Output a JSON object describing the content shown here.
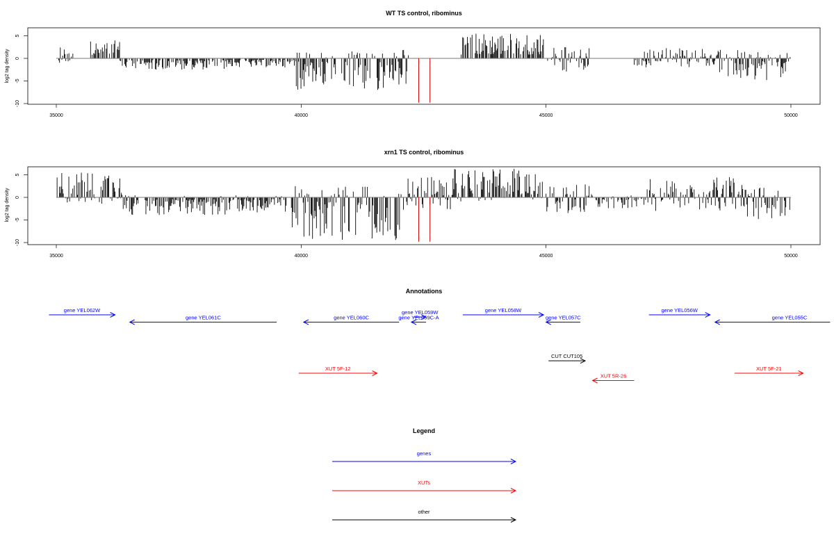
{
  "chart_data": [
    {
      "type": "bar",
      "title": "WT TS control, ribominus",
      "xlabel": "",
      "ylabel": "log2 tag density",
      "xlim": [
        35000,
        50000
      ],
      "ylim": [
        -10,
        7
      ],
      "x_ticks": [
        "35000",
        "40000",
        "45000",
        "50000"
      ],
      "y_ticks": [
        "-10",
        "-5",
        "0",
        "5"
      ],
      "grid": false,
      "baseline": 0,
      "colors": {
        "bars": "#000000",
        "highlight": "#cc0000",
        "baseline": "#777777"
      },
      "regions": [
        {
          "x": [
            35050,
            35350
          ],
          "y": [
            -1.5,
            2.8
          ]
        },
        {
          "x": [
            35700,
            36300
          ],
          "y": [
            0,
            4
          ]
        },
        {
          "x": [
            36300,
            38500
          ],
          "y": [
            -2.5,
            0
          ]
        },
        {
          "x": [
            38500,
            39900
          ],
          "y": [
            -2,
            0
          ]
        },
        {
          "x": [
            39900,
            42200
          ],
          "y": [
            -7,
            2
          ]
        },
        {
          "x": [
            43250,
            44950
          ],
          "y": [
            0,
            5.7
          ]
        },
        {
          "x": [
            45000,
            45900
          ],
          "y": [
            -3,
            2.5
          ]
        },
        {
          "x": [
            46800,
            48400
          ],
          "y": [
            -2,
            2.3
          ]
        },
        {
          "x": [
            48400,
            50000
          ],
          "y": [
            -4.8,
            2
          ]
        }
      ],
      "highlight_bars": [
        {
          "x": 42400,
          "y": -9.8
        },
        {
          "x": 42630,
          "y": -9.8
        }
      ]
    },
    {
      "type": "bar",
      "title": "xrn1 TS control, ribominus",
      "xlabel": "",
      "ylabel": "log2 tag density",
      "xlim": [
        35000,
        50000
      ],
      "ylim": [
        -10,
        7
      ],
      "x_ticks": [
        "35000",
        "40000",
        "45000",
        "50000"
      ],
      "y_ticks": [
        "-10",
        "-5",
        "0",
        "5"
      ],
      "grid": false,
      "baseline": 0,
      "colors": {
        "bars": "#000000",
        "highlight": "#cc0000",
        "baseline": "#777777"
      },
      "regions": [
        {
          "x": [
            35000,
            36350
          ],
          "y": [
            -1.5,
            5.5
          ]
        },
        {
          "x": [
            36350,
            39700
          ],
          "y": [
            -4,
            0.5
          ]
        },
        {
          "x": [
            39800,
            42100
          ],
          "y": [
            -9.5,
            2.5
          ]
        },
        {
          "x": [
            42150,
            43100
          ],
          "y": [
            -3,
            4.5
          ]
        },
        {
          "x": [
            43100,
            44950
          ],
          "y": [
            -1,
            6.5
          ]
        },
        {
          "x": [
            45000,
            45950
          ],
          "y": [
            -3.5,
            3.5
          ]
        },
        {
          "x": [
            46000,
            47000
          ],
          "y": [
            -2.5,
            0.5
          ]
        },
        {
          "x": [
            47000,
            49000
          ],
          "y": [
            -3,
            4.5
          ]
        },
        {
          "x": [
            49000,
            50000
          ],
          "y": [
            -5,
            2.5
          ]
        }
      ],
      "highlight_bars": [
        {
          "x": 42400,
          "y": -9.8
        },
        {
          "x": 42630,
          "y": -9.8
        }
      ]
    }
  ],
  "annotations": {
    "title": "Annotations",
    "items": [
      {
        "label": "gene YEL062W",
        "start": 34850,
        "end": 36200,
        "strand": "+",
        "row": 0,
        "color": "#0000ff"
      },
      {
        "label": "gene YEL061C",
        "start": 36500,
        "end": 39500,
        "strand": "-",
        "row": 1,
        "color": "#0000ff"
      },
      {
        "label": "gene YEL060C",
        "start": 40050,
        "end": 42000,
        "strand": "-",
        "row": 1,
        "color": "#0000ff"
      },
      {
        "label": "gene YEL059W",
        "start": 42300,
        "end": 42550,
        "strand": "+",
        "row": 0.3,
        "color": "#0000ff"
      },
      {
        "label": "gene YEL059C-A",
        "start": 42250,
        "end": 42550,
        "strand": "-",
        "row": 1,
        "color": "#0000ff"
      },
      {
        "label": "gene YEL058W",
        "start": 43300,
        "end": 44950,
        "strand": "+",
        "row": 0,
        "color": "#0000ff"
      },
      {
        "label": "gene YEL057C",
        "start": 45000,
        "end": 45700,
        "strand": "-",
        "row": 1,
        "color": "#0000ff"
      },
      {
        "label": "gene YEL056W",
        "start": 47100,
        "end": 48350,
        "strand": "+",
        "row": 0,
        "color": "#0000ff"
      },
      {
        "label": "gene YEL055C",
        "start": 48450,
        "end": 50800,
        "strand": "-",
        "row": 1,
        "color": "#0000ff"
      },
      {
        "label": "CUT CUT105",
        "start": 45050,
        "end": 45800,
        "strand": "+",
        "row": 6.3,
        "color": "#000000"
      },
      {
        "label": "XUT 5F-12",
        "start": 39950,
        "end": 41550,
        "strand": "+",
        "row": 8,
        "color": "#ff0000"
      },
      {
        "label": "XUT 5R-26",
        "start": 45950,
        "end": 46800,
        "strand": "-",
        "row": 9,
        "color": "#ff0000"
      },
      {
        "label": "XUT 5F-21",
        "start": 48850,
        "end": 50250,
        "strand": "+",
        "row": 8,
        "color": "#ff0000"
      }
    ]
  },
  "legend": {
    "title": "Legend",
    "items": [
      {
        "label": "genes",
        "color": "#0000ff"
      },
      {
        "label": "XUTs",
        "color": "#ff0000"
      },
      {
        "label": "other",
        "color": "#000000"
      }
    ]
  }
}
